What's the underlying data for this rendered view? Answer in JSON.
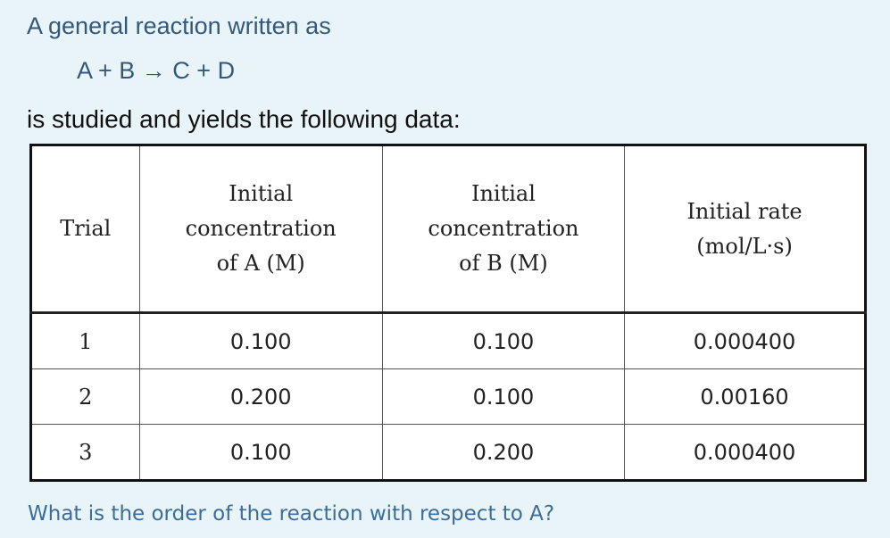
{
  "intro": "A general reaction written as",
  "equation": "A + B → C + D",
  "statement": "is studied and yields the following data:",
  "table": {
    "headers": [
      [
        "Trial"
      ],
      [
        "Initial",
        "concentration",
        "of A (M)"
      ],
      [
        "Initial",
        "concentration",
        "of B (M)"
      ],
      [
        "Initial rate",
        "(mol/L·s)"
      ]
    ],
    "rows": [
      [
        "1",
        "0.100",
        "0.100",
        "0.000400"
      ],
      [
        "2",
        "0.200",
        "0.100",
        "0.00160"
      ],
      [
        "3",
        "0.100",
        "0.200",
        "0.000400"
      ]
    ]
  },
  "question": "What is the order of the reaction with respect to A?"
}
